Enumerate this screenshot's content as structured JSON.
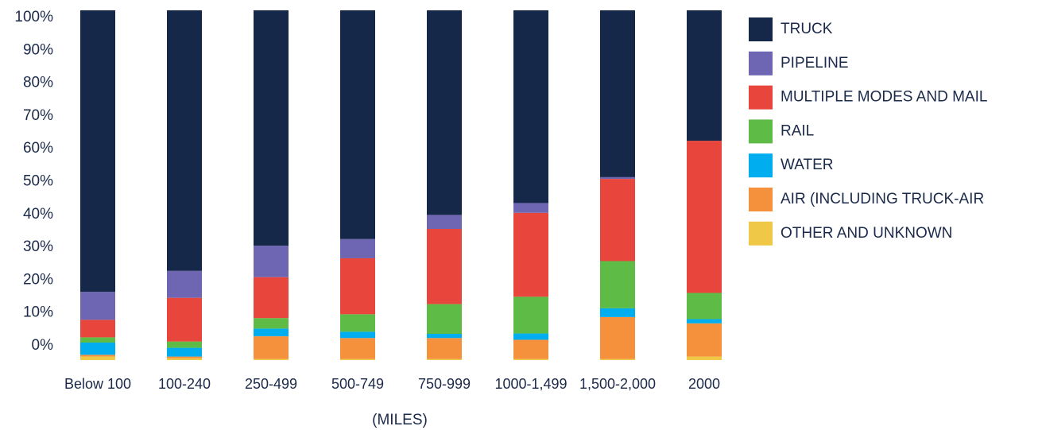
{
  "chart_data": {
    "type": "bar",
    "stacked": true,
    "orientation": "vertical",
    "categories": [
      "Below 100",
      "100-240",
      "250-499",
      "500-749",
      "750-999",
      "1000-1,499",
      "1,500-2,000",
      "2000"
    ],
    "xlabel": "(MILES)",
    "ylabel": "",
    "ylim": [
      0,
      100
    ],
    "y_tick_labels": [
      "0%",
      "10%",
      "20%",
      "30%",
      "40%",
      "50%",
      "60%",
      "70%",
      "80%",
      "90%",
      "100%"
    ],
    "grid": false,
    "legend_position": "right",
    "series": [
      {
        "name": "OTHER AND UNKNOWN",
        "color": "#F0C848",
        "values": [
          1,
          0.5,
          0.3,
          0.3,
          0.3,
          0.3,
          0.3,
          1
        ]
      },
      {
        "name": "AIR (INCLUDING TRUCK-AIR",
        "color": "#F5913C",
        "values": [
          0.5,
          0.5,
          6.5,
          6,
          6,
          5.5,
          12,
          9.5
        ]
      },
      {
        "name": "WATER",
        "color": "#00AEEF",
        "values": [
          3.5,
          2.5,
          2.2,
          1.8,
          1.2,
          1.8,
          2.5,
          1.2
        ]
      },
      {
        "name": "RAIL",
        "color": "#5DBB46",
        "values": [
          1.5,
          1.8,
          3,
          5,
          8.5,
          10.5,
          13.5,
          7.5
        ]
      },
      {
        "name": "MULTIPLE MODES AND MAIL",
        "color": "#E8453C",
        "values": [
          5,
          12.5,
          11.7,
          16,
          21.5,
          24,
          23.5,
          43.5
        ]
      },
      {
        "name": "PIPELINE",
        "color": "#6E66B2",
        "values": [
          8,
          7.7,
          9,
          5.5,
          4,
          2.8,
          0.5,
          0
        ]
      },
      {
        "name": "TRUCK",
        "color": "#162849",
        "values": [
          80.5,
          74.5,
          67.3,
          65.4,
          58.5,
          55.1,
          47.7,
          37.3
        ]
      }
    ]
  }
}
